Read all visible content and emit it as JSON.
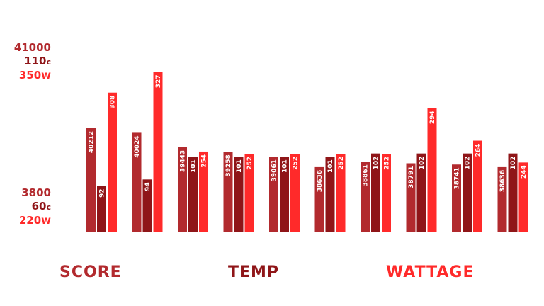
{
  "colors": {
    "score": "#b22a2e",
    "temp": "#8f1518",
    "wattage": "#ff2a2a"
  },
  "axis": {
    "top": {
      "score": "41000",
      "temp": "110",
      "temp_unit": "c",
      "wattage": "350w"
    },
    "bottom": {
      "score": "3800",
      "temp": "60",
      "temp_unit": "c",
      "wattage": "220w"
    }
  },
  "legend": {
    "score": "SCORE",
    "temp": "TEMP",
    "wattage": "WATTAGE"
  },
  "chart_data": {
    "type": "bar",
    "categories": [
      "",
      "",
      "",
      "",
      "",
      "",
      "",
      "",
      "",
      ""
    ],
    "series": [
      {
        "name": "SCORE",
        "values": [
          40212,
          40024,
          39443,
          39258,
          39061,
          38636,
          38861,
          38791,
          38741,
          38636
        ],
        "labels": [
          "40212",
          "40024",
          "39443",
          "39258",
          "39061",
          "38636",
          "38861",
          "38791",
          "38741",
          "38636"
        ]
      },
      {
        "name": "TEMP",
        "values": [
          92,
          94,
          101,
          101,
          101,
          101,
          102,
          102,
          102,
          102
        ],
        "labels": [
          "92",
          "94",
          "101",
          "101",
          "101",
          "101",
          "102",
          "102",
          "102",
          "102"
        ]
      },
      {
        "name": "WATTAGE",
        "values": [
          308,
          327,
          254,
          252,
          252,
          252,
          252,
          294,
          264,
          244
        ],
        "labels": [
          "308",
          "327",
          "254",
          "252",
          "252",
          "252",
          "252",
          "294",
          "264",
          "244"
        ]
      }
    ],
    "grid": false,
    "legend_position": "bottom"
  }
}
